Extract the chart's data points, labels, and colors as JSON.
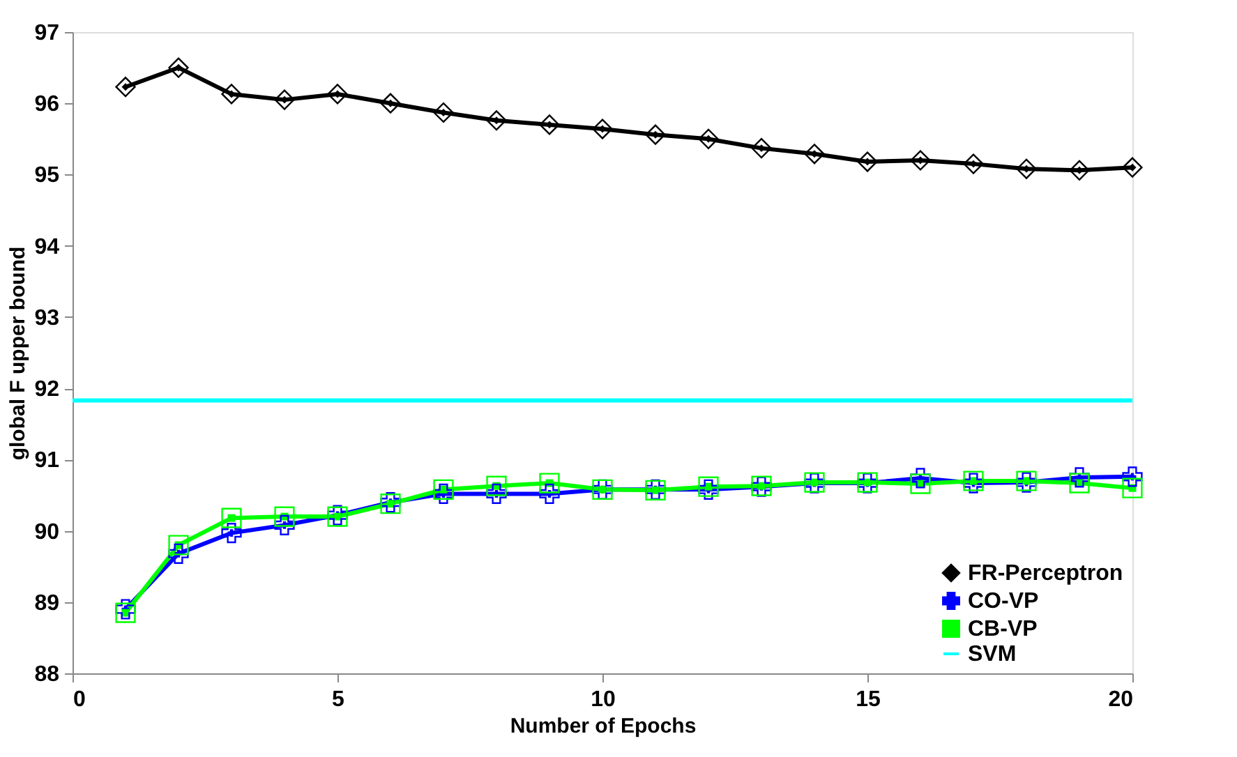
{
  "chart_data": {
    "type": "line",
    "xlabel": "Number of Epochs",
    "ylabel": "global F upper bound",
    "xlim": [
      0,
      20
    ],
    "ylim": [
      88,
      97
    ],
    "xticks": [
      0,
      5,
      10,
      15,
      20
    ],
    "yticks": [
      88,
      89,
      90,
      91,
      92,
      93,
      94,
      95,
      96,
      97
    ],
    "grid": false,
    "legend": "bottom right",
    "series": [
      {
        "name": "FR-Perceptron",
        "color": "#000000",
        "marker": "diamond",
        "x": [
          1,
          2,
          3,
          4,
          5,
          6,
          7,
          8,
          9,
          10,
          11,
          12,
          13,
          14,
          15,
          16,
          17,
          18,
          19,
          20
        ],
        "values": [
          96.23,
          96.5,
          96.13,
          96.05,
          96.13,
          96.0,
          95.87,
          95.76,
          95.7,
          95.64,
          95.56,
          95.5,
          95.37,
          95.29,
          95.18,
          95.2,
          95.15,
          95.08,
          95.06,
          95.1
        ]
      },
      {
        "name": "CO-VP",
        "color": "#0000ff",
        "marker": "cross",
        "x": [
          1,
          2,
          3,
          4,
          5,
          6,
          7,
          8,
          9,
          10,
          11,
          12,
          13,
          14,
          15,
          16,
          17,
          18,
          19,
          20
        ],
        "values": [
          88.9,
          89.68,
          89.97,
          90.08,
          90.22,
          90.4,
          90.52,
          90.52,
          90.52,
          90.58,
          90.58,
          90.58,
          90.62,
          90.67,
          90.67,
          90.74,
          90.67,
          90.68,
          90.75,
          90.76
        ]
      },
      {
        "name": "CB-VP",
        "color": "#00ff00",
        "marker": "square",
        "x": [
          1,
          2,
          3,
          4,
          5,
          6,
          7,
          8,
          9,
          10,
          11,
          12,
          13,
          14,
          15,
          16,
          17,
          18,
          19,
          20
        ],
        "values": [
          88.85,
          89.8,
          90.18,
          90.2,
          90.2,
          90.38,
          90.58,
          90.63,
          90.67,
          90.58,
          90.57,
          90.62,
          90.63,
          90.68,
          90.68,
          90.66,
          90.7,
          90.7,
          90.67,
          90.6
        ]
      },
      {
        "name": "SVM",
        "color": "#00ffff",
        "marker": "none",
        "x": [
          0,
          20
        ],
        "values": [
          91.83,
          91.83
        ]
      }
    ]
  }
}
